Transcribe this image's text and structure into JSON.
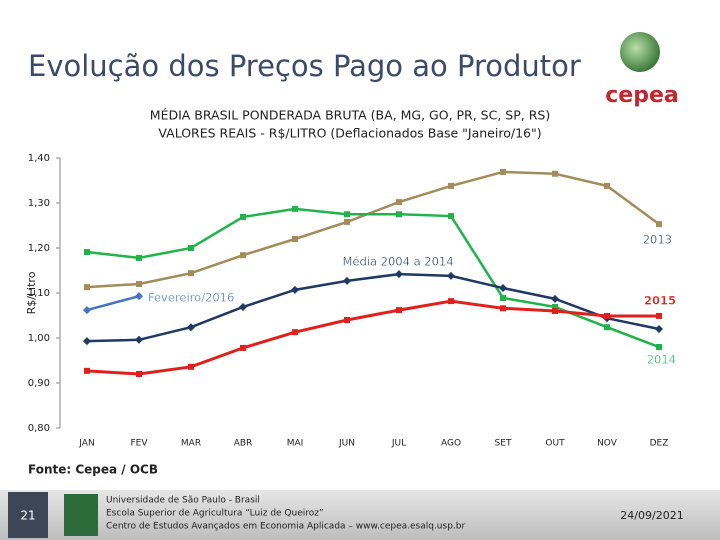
{
  "slide": {
    "title": "Evolução dos Preços Pago ao Produtor",
    "logo": "cepea",
    "source": "Fonte: Cepea / OCB",
    "footer": {
      "page": "21",
      "lines": [
        "Universidade de São Paulo - Brasil",
        "Escola Superior de Agricultura “Luiz de Queiroz”",
        "Centro de Estudos Avançados em Economia Aplicada – www.cepea.esalq.usp.br"
      ],
      "date": "24/09/2021"
    }
  },
  "chart_data": {
    "type": "line",
    "title": "MÉDIA BRASIL PONDERADA BRUTA (BA, MG, GO, PR, SC, SP, RS)",
    "subtitle": "VALORES REAIS - R$/LITRO (Deflacionados Base \"Janeiro/16\")",
    "y_label": "R$/Litro",
    "categories": [
      "JAN",
      "FEV",
      "MAR",
      "ABR",
      "MAI",
      "JUN",
      "JUL",
      "AGO",
      "SET",
      "OUT",
      "NOV",
      "DEZ"
    ],
    "ylim": [
      0.8,
      1.4
    ],
    "yticks": [
      {
        "value": 0.8,
        "label": "0,80"
      },
      {
        "value": 0.9,
        "label": "0,90"
      },
      {
        "value": 1.0,
        "label": "1,00"
      },
      {
        "value": 1.1,
        "label": "1,10"
      },
      {
        "value": 1.2,
        "label": "1,20"
      },
      {
        "value": 1.3,
        "label": "1,30"
      },
      {
        "value": 1.4,
        "label": "1,40"
      }
    ],
    "grid": false,
    "series": [
      {
        "name": "2013",
        "color": "#a38b5a",
        "values": [
          1.113,
          1.12,
          1.144,
          1.184,
          1.22,
          1.258,
          1.302,
          1.338,
          1.369,
          1.365,
          1.338,
          1.253
        ]
      },
      {
        "name": "2014",
        "color": "#1fb44a",
        "values": [
          1.191,
          1.178,
          1.2,
          1.269,
          1.287,
          1.275,
          1.275,
          1.271,
          1.089,
          1.069,
          1.024,
          0.98
        ]
      },
      {
        "name": "Média 2004 a 2014",
        "color": "#1f3864",
        "values": [
          0.993,
          0.996,
          1.024,
          1.069,
          1.107,
          1.127,
          1.142,
          1.138,
          1.111,
          1.087,
          1.044,
          1.02
        ]
      },
      {
        "name": "Fevereiro/2016",
        "color": "#4472c4",
        "values": [
          1.062,
          1.093,
          null,
          null,
          null,
          null,
          null,
          null,
          null,
          null,
          null,
          null
        ]
      },
      {
        "name": "2015",
        "color": "#e0201b",
        "values": [
          0.927,
          0.92,
          0.936,
          0.978,
          1.013,
          1.04,
          1.062,
          1.082,
          1.066,
          1.06,
          1.049,
          1.049
        ]
      }
    ]
  }
}
